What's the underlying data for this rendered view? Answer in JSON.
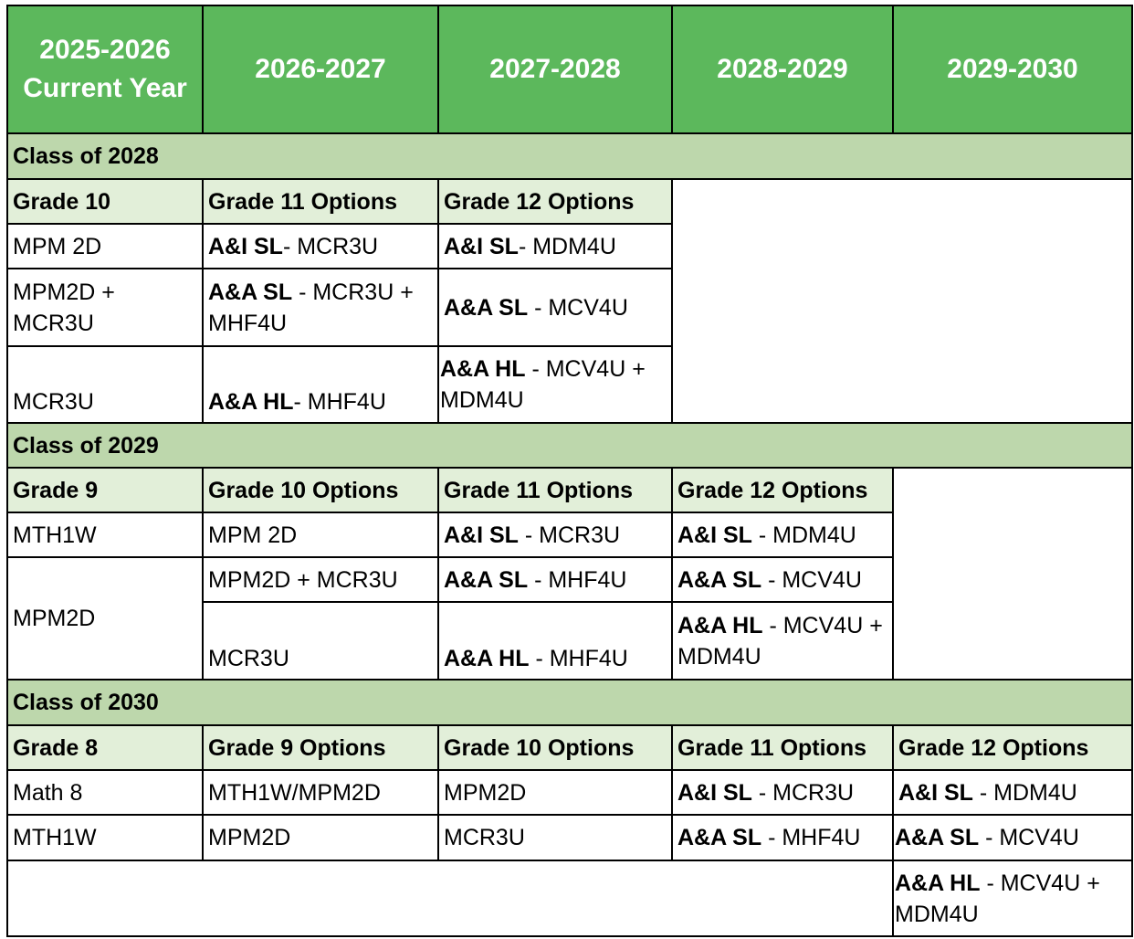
{
  "header": [
    "2025-2026\nCurrent Year",
    "2026-2027",
    "2027-2028",
    "2028-2029",
    "2029-2030"
  ],
  "class2028": {
    "title": "Class of 2028",
    "heads": [
      "Grade 10",
      "Grade 11 Options",
      "Grade 12 Options"
    ],
    "r1": {
      "c1": "MPM 2D",
      "c2b": "A&I SL",
      "c2": "- MCR3U",
      "c3b": "A&I SL",
      "c3": "- MDM4U"
    },
    "r2": {
      "c1": "MPM2D + MCR3U",
      "c2b": "A&A SL",
      "c2": " - MCR3U + MHF4U",
      "c3b": "A&A SL",
      "c3": " - MCV4U"
    },
    "r3": {
      "c1": "MCR3U",
      "c2b": "A&A HL",
      "c2": "- MHF4U",
      "c3b": "A&A HL",
      "c3": " - MCV4U + MDM4U"
    }
  },
  "class2029": {
    "title": "Class of 2029",
    "heads": [
      "Grade 9",
      "Grade 10 Options",
      "Grade 11 Options",
      "Grade 12 Options"
    ],
    "r1": {
      "c1": "MTH1W",
      "c2": "MPM 2D",
      "c3b": "A&I SL",
      "c3": " - MCR3U",
      "c4b": "A&I SL",
      "c4": " - MDM4U"
    },
    "r2": {
      "c1": "MPM2D",
      "c2": "MPM2D + MCR3U",
      "c3b": "A&A SL",
      "c3": " - MHF4U",
      "c4b": "A&A SL",
      "c4": " - MCV4U"
    },
    "r3": {
      "c2": "MCR3U",
      "c3b": "A&A HL",
      "c3": " - MHF4U",
      "c4b": "A&A HL",
      "c4": " - MCV4U + MDM4U"
    }
  },
  "class2030": {
    "title": "Class of 2030",
    "heads": [
      "Grade 8",
      "Grade 9 Options",
      "Grade 10 Options",
      "Grade 11 Options",
      "Grade 12 Options"
    ],
    "r1": {
      "c1": "Math 8",
      "c2": "MTH1W/MPM2D",
      "c3": "MPM2D",
      "c4b": "A&I SL",
      "c4": " - MCR3U",
      "c5b": "A&I SL",
      "c5": " - MDM4U"
    },
    "r2": {
      "c1": "MTH1W",
      "c2": "MPM2D",
      "c3": "MCR3U",
      "c4b": "A&A SL",
      "c4": " - MHF4U",
      "c5b": "A&A SL",
      "c5": " - MCV4U"
    },
    "r3": {
      "c5b": "A&A HL",
      "c5": " - MCV4U + MDM4U"
    }
  }
}
